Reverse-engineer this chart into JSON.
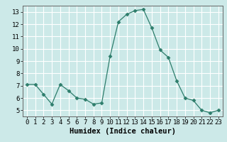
{
  "x": [
    0,
    1,
    2,
    3,
    4,
    5,
    6,
    7,
    8,
    9,
    10,
    11,
    12,
    13,
    14,
    15,
    16,
    17,
    18,
    19,
    20,
    21,
    22,
    23
  ],
  "y": [
    7.1,
    7.1,
    6.3,
    5.5,
    7.1,
    6.6,
    6.0,
    5.9,
    5.5,
    5.6,
    9.4,
    12.2,
    12.8,
    13.1,
    13.2,
    11.7,
    9.9,
    9.3,
    7.4,
    6.0,
    5.8,
    5.0,
    4.8,
    5.0
  ],
  "line_color": "#2d7d6b",
  "marker": "D",
  "marker_size": 2.5,
  "bg_color": "#cce9e8",
  "grid_color": "#ffffff",
  "xlabel": "Humidex (Indice chaleur)",
  "xlim": [
    -0.5,
    23.5
  ],
  "ylim": [
    4.5,
    13.5
  ],
  "yticks": [
    5,
    6,
    7,
    8,
    9,
    10,
    11,
    12,
    13
  ],
  "xticks": [
    0,
    1,
    2,
    3,
    4,
    5,
    6,
    7,
    8,
    9,
    10,
    11,
    12,
    13,
    14,
    15,
    16,
    17,
    18,
    19,
    20,
    21,
    22,
    23
  ],
  "xlabel_fontsize": 7.5,
  "tick_fontsize": 6.5
}
